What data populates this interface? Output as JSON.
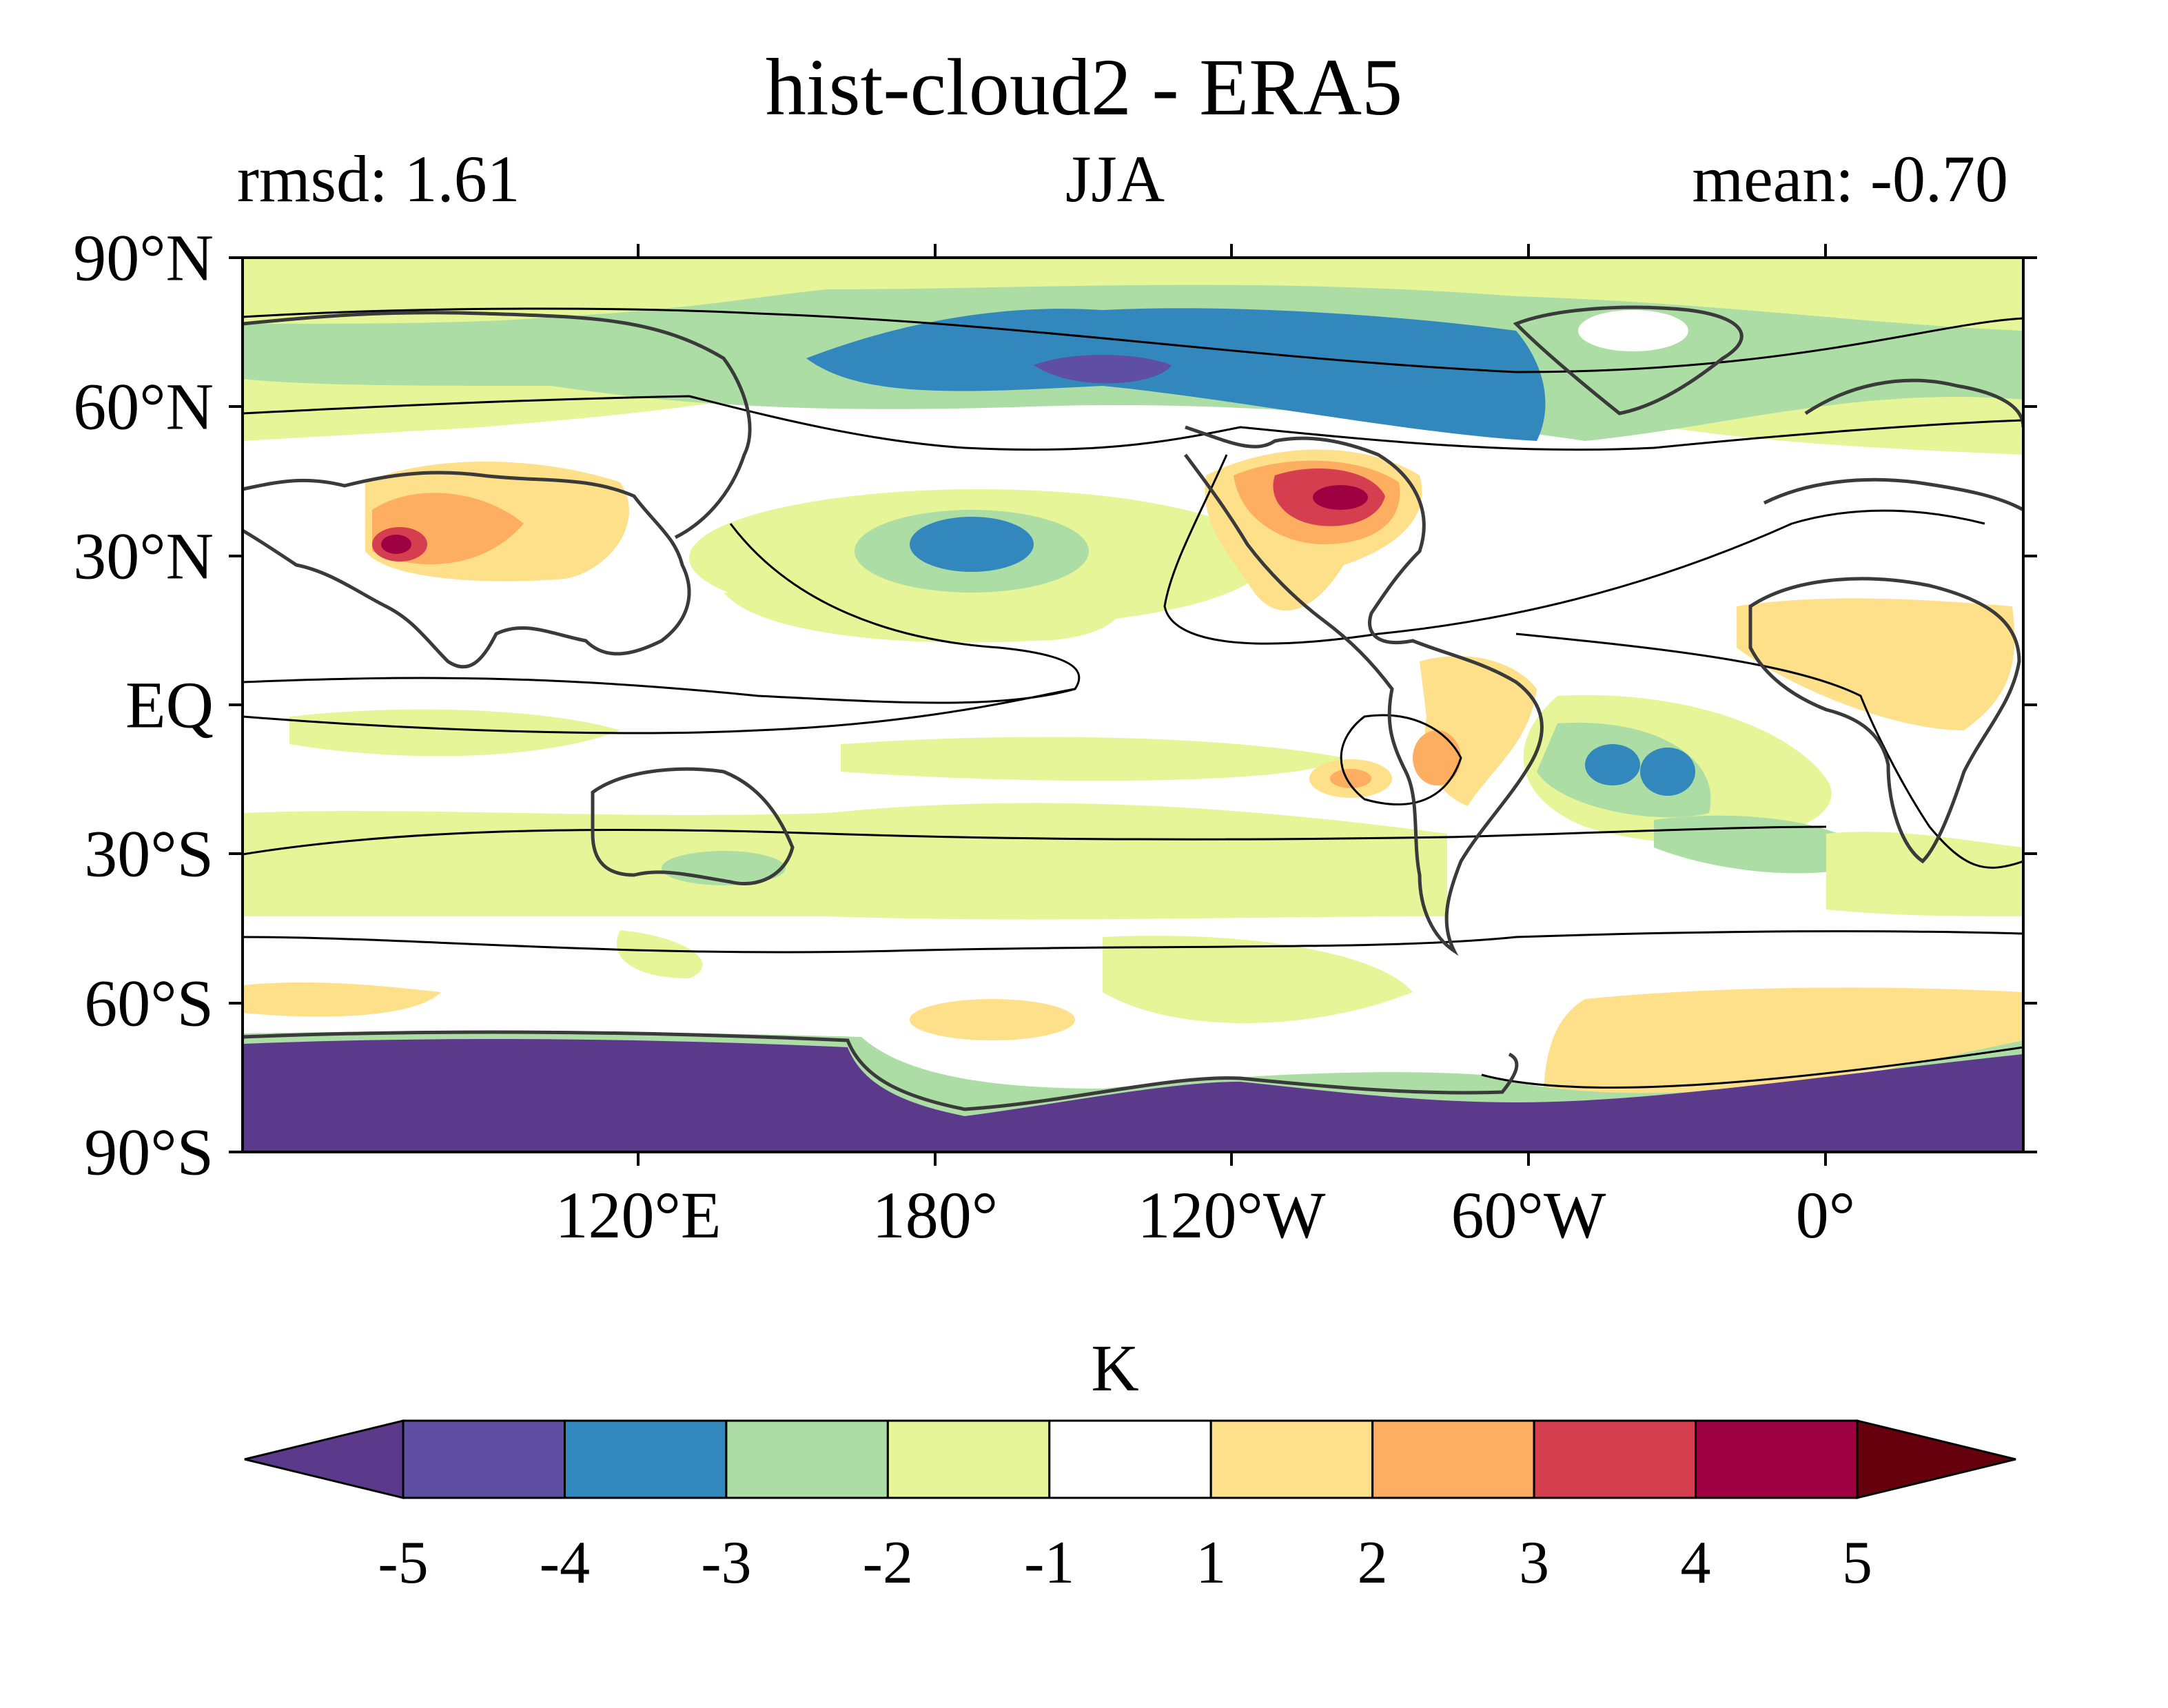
{
  "title": "hist-cloud2 - ERA5",
  "stats": {
    "rmsd": "rmsd: 1.61",
    "season": "JJA",
    "mean": "mean: -0.70"
  },
  "lat_ticks": [
    "90°N",
    "60°N",
    "30°N",
    "EQ",
    "30°S",
    "60°S",
    "90°S"
  ],
  "lon_ticks": [
    "120°E",
    "180°",
    "120°W",
    "60°W",
    "0°"
  ],
  "colorbar": {
    "units": "K",
    "tick_labels": [
      "-5",
      "-4",
      "-3",
      "-2",
      "-1",
      "1",
      "2",
      "3",
      "4",
      "5"
    ],
    "colors": [
      "#5b3a8c",
      "#5e4fa2",
      "#3288bd",
      "#abdda4",
      "#e6f598",
      "#ffffff",
      "#fee08b",
      "#fdae61",
      "#d53e4f",
      "#9e0142",
      "#67000d"
    ]
  },
  "chart_data": {
    "type": "heatmap",
    "title": "hist-cloud2 - ERA5",
    "subtitle_left": "rmsd: 1.61",
    "subtitle_center": "JJA",
    "subtitle_right": "mean: -0.70",
    "units": "K",
    "levels": [
      -5,
      -4,
      -3,
      -2,
      -1,
      1,
      2,
      3,
      4,
      5
    ],
    "lon_range": [
      40,
      400
    ],
    "lat_range": [
      -90,
      90
    ],
    "features": [
      {
        "name": "Antarctic cold bias",
        "value": -5
      },
      {
        "name": "Arctic Canada cold bias",
        "value": -4.5
      },
      {
        "name": "Greenland / North Atlantic cold bias",
        "value": -3
      },
      {
        "name": "North Pacific cold anomaly",
        "value": -3.5
      },
      {
        "name": "South Atlantic cold anomaly",
        "value": -3.5
      },
      {
        "name": "Central North America warm bias",
        "value": 4.5
      },
      {
        "name": "Tibetan Plateau warm bias",
        "value": 4.5
      },
      {
        "name": "South America warm bias",
        "value": 2.5
      },
      {
        "name": "North Africa warm bias",
        "value": 1.5
      }
    ]
  }
}
